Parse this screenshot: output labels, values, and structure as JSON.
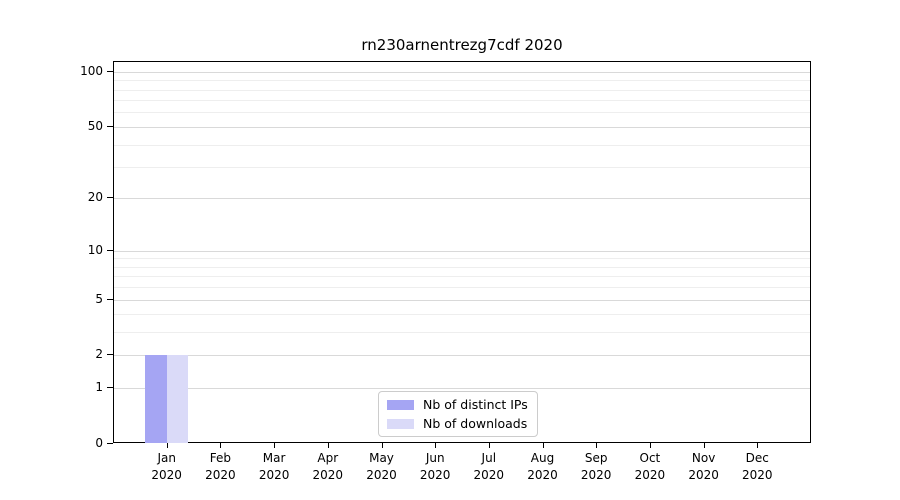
{
  "figure": {
    "background": "#ffffff"
  },
  "chart_data": {
    "type": "bar",
    "title": "rn230arnentrezg7cdf 2020",
    "categories": [
      "Jan",
      "Feb",
      "Mar",
      "Apr",
      "May",
      "Jun",
      "Jul",
      "Aug",
      "Sep",
      "Oct",
      "Nov",
      "Dec"
    ],
    "category_year": "2020",
    "series": [
      {
        "name": "Nb of distinct IPs",
        "color": "#a5a5f3",
        "values": [
          2,
          0,
          0,
          0,
          0,
          0,
          0,
          0,
          0,
          0,
          0,
          0
        ]
      },
      {
        "name": "Nb of downloads",
        "color": "#dadaf8",
        "values": [
          2,
          0,
          0,
          0,
          0,
          0,
          0,
          0,
          0,
          0,
          0,
          0
        ]
      }
    ],
    "xlabel": "",
    "ylabel": "",
    "yscale": "log1p",
    "ylim": [
      0,
      113
    ],
    "yticks": [
      0,
      1,
      2,
      5,
      10,
      20,
      50,
      100
    ],
    "minor_gridlines": [
      3,
      4,
      6,
      7,
      8,
      9,
      30,
      40,
      60,
      70,
      80,
      90
    ],
    "grid": "horizontal",
    "legend_position": "inside-bottom-center",
    "colors": {
      "axis": "#000000",
      "text": "#000000",
      "grid_major": "#d9d9d9",
      "grid_minor": "#eeeeee",
      "legend_border": "#cccccc"
    }
  }
}
